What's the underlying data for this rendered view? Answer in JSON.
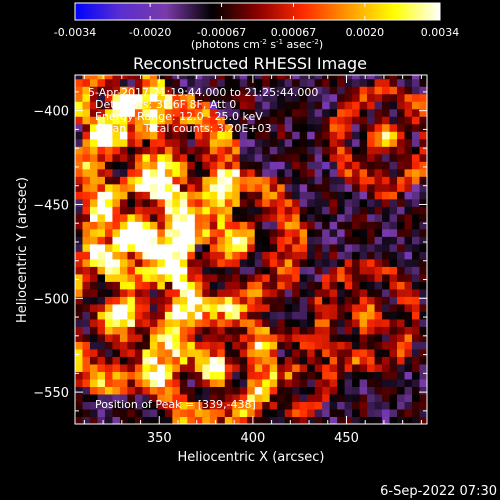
{
  "colorbar": {
    "ticks": [
      "-0.0034",
      "-0.0020",
      "-0.00067",
      "0.00067",
      "0.0020",
      "0.0034"
    ],
    "units_prefix": "(photons cm",
    "units_exp1": "-2",
    "units_mid1": " s",
    "units_exp2": "-1",
    "units_mid2": " asec",
    "units_exp3": "-2",
    "units_suffix": ")",
    "range": [
      -0.0034,
      0.0034
    ]
  },
  "title": "Reconstructed RHESSI Image",
  "annotations": {
    "time": "5-Apr-2017 21:19:44.000 to 21:25:44.000",
    "detectors": "Detectors: 3F 6F 8F, Att 0",
    "energy": "Energy Range: 12.0 - 25.0 keV",
    "clean": "Clean     Total counts: 3.20E+03",
    "peak": "Position of Peak = [339,-438]"
  },
  "timestamp": "6-Sep-2022 07:30",
  "chart_data": {
    "type": "heatmap",
    "title": "Reconstructed RHESSI Image",
    "xlabel": "Heliocentric X (arcsec)",
    "ylabel": "Heliocentric Y (arcsec)",
    "xlim": [
      305,
      493
    ],
    "ylim": [
      -567,
      -381
    ],
    "x_ticks": [
      350,
      400,
      450
    ],
    "y_ticks": [
      -400,
      -450,
      -500,
      -550
    ],
    "x_tick_labels": [
      "350",
      "400",
      "450"
    ],
    "y_tick_labels": [
      "−400",
      "−450",
      "−500",
      "−550"
    ],
    "peak_position": [
      339,
      -438
    ],
    "value_range": [
      -0.0034,
      0.0034
    ],
    "colormap": [
      "#0000ff",
      "#5a2fd0",
      "#7a3aa8",
      "#000000",
      "#8b0000",
      "#ff2a00",
      "#ff9a00",
      "#ffff00",
      "#ffffff"
    ],
    "pixel_size_arcsec": 4,
    "bright_regions": [
      {
        "center": [
          330,
          -395
        ],
        "radius": 18,
        "strength": 1.0
      },
      {
        "center": [
          350,
          -433
        ],
        "radius": 32,
        "strength": 1.0
      },
      {
        "center": [
          340,
          -465
        ],
        "radius": 22,
        "strength": 0.85
      },
      {
        "center": [
          390,
          -470
        ],
        "radius": 28,
        "strength": 0.75
      },
      {
        "center": [
          330,
          -510
        ],
        "radius": 30,
        "strength": 0.95
      },
      {
        "center": [
          378,
          -535
        ],
        "radius": 26,
        "strength": 0.9
      },
      {
        "center": [
          470,
          -415
        ],
        "radius": 22,
        "strength": 0.6
      },
      {
        "center": [
          460,
          -510
        ],
        "radius": 22,
        "strength": 0.6
      },
      {
        "center": [
          420,
          -540
        ],
        "radius": 18,
        "strength": 0.5
      }
    ]
  }
}
